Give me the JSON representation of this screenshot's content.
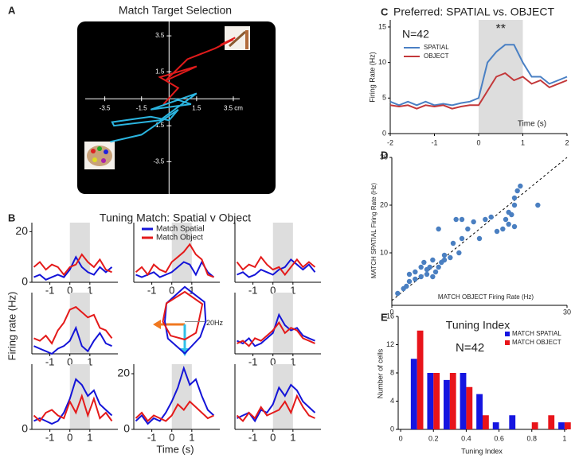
{
  "chart_data": [
    {
      "label": "A",
      "type": "trajectory",
      "title": "Match Target Selection",
      "xlim": [
        -5,
        5.8
      ],
      "ylim": [
        -5.3,
        4.3
      ],
      "xticks": [
        -3.5,
        -1.5,
        1.5,
        {
          "value": 3.5,
          "label": "3.5 cm"
        }
      ],
      "yticks": [
        3.5,
        1.5,
        -1.5,
        -3.5
      ],
      "series": [
        {
          "color": "#e01b1b",
          "x": [
            -0.3,
            0.5,
            -0.5,
            1.5,
            -0.2,
            1.0,
            2.5,
            3.5,
            2.8,
            3.6
          ],
          "values": [
            -0.3,
            0.6,
            1.2,
            1.8,
            1.0,
            2.2,
            2.8,
            3.3,
            3.0,
            3.4
          ]
        },
        {
          "color": "#2bb5e0",
          "x": [
            0.3,
            1.2,
            -1.0,
            1.5,
            -0.5,
            -3.0,
            -3.1,
            -1.0,
            0.0,
            0.5,
            -1.5,
            -3.2
          ],
          "values": [
            0.0,
            -0.3,
            -0.6,
            0.3,
            -1.2,
            -1.5,
            -1.3,
            -1.0,
            -1.2,
            -0.6,
            -2.0,
            -2.4
          ]
        }
      ]
    },
    {
      "label": "B",
      "type": "multiples",
      "title": "Tuning Match: Spatial v Object",
      "ylabel": "Firing rate (Hz)",
      "xlabel": "Time (s)",
      "legend": [
        {
          "name": "Match Spatial",
          "color": "#1414d8"
        },
        {
          "name": "Match Object",
          "color": "#e41a1a"
        }
      ],
      "x": [
        -1.8,
        -1.5,
        -1.2,
        -0.9,
        -0.6,
        -0.3,
        0,
        0.3,
        0.6,
        0.9,
        1.2,
        1.5,
        1.8,
        2.1
      ],
      "xlim": [
        -1.9,
        2.4
      ],
      "ylim": [
        0,
        22
      ],
      "shade": [
        0,
        1
      ],
      "subplots": [
        {
          "type": "line",
          "yticks": [
            0,
            20
          ],
          "xticks": [
            -1,
            0,
            1
          ],
          "series": [
            {
              "values": [
                2,
                3,
                1,
                2,
                3,
                2,
                5,
                10,
                6,
                4,
                3,
                6,
                4,
                6
              ]
            },
            {
              "values": [
                6,
                8,
                5,
                7,
                6,
                3,
                6,
                7,
                11,
                8,
                6,
                9,
                5,
                4
              ]
            }
          ]
        },
        {
          "type": "line",
          "xticks": [
            -1,
            0,
            1
          ],
          "series": [
            {
              "values": [
                3,
                2,
                3,
                4,
                2,
                3,
                4,
                6,
                8,
                7,
                3,
                8,
                4,
                2
              ]
            },
            {
              "values": [
                4,
                6,
                3,
                7,
                5,
                4,
                8,
                10,
                12,
                15,
                11,
                9,
                3,
                2
              ]
            }
          ]
        },
        {
          "type": "line",
          "xticks": [
            -1,
            0,
            1
          ],
          "series": [
            {
              "values": [
                3,
                4,
                2,
                3,
                5,
                4,
                3,
                5,
                6,
                9,
                7,
                5,
                7,
                4
              ]
            },
            {
              "values": [
                8,
                5,
                7,
                6,
                10,
                7,
                5,
                6,
                3,
                6,
                9,
                6,
                8,
                6
              ]
            }
          ]
        },
        {
          "type": "line",
          "xticks": [
            -1,
            0,
            1
          ],
          "series": [
            {
              "values": [
                3,
                2,
                1,
                0,
                2,
                3,
                5,
                10,
                3,
                1,
                5,
                8,
                4,
                3
              ]
            },
            {
              "values": [
                6,
                5,
                7,
                4,
                9,
                12,
                17,
                18,
                16,
                14,
                15,
                10,
                9,
                6
              ]
            }
          ]
        },
        {
          "type": "polar",
          "angles": [
            0,
            45,
            90,
            135,
            180,
            225,
            270,
            315
          ],
          "rtick": {
            "value": 20,
            "label": "20Hz"
          },
          "series": [
            {
              "values": [
                21,
                28,
                35,
                26,
                20,
                24,
                32,
                22
              ]
            },
            {
              "values": [
                14,
                25,
                30,
                26,
                22,
                20,
                18,
                16
              ]
            }
          ]
        },
        {
          "type": "line",
          "xticks": [
            -1,
            0,
            1
          ],
          "series": [
            {
              "values": [
                5,
                4,
                6,
                3,
                4,
                6,
                8,
                15,
                11,
                9,
                10,
                7,
                6,
                5
              ]
            },
            {
              "values": [
                4,
                5,
                3,
                6,
                5,
                7,
                9,
                12,
                8,
                10,
                9,
                6,
                5,
                4
              ]
            }
          ]
        },
        {
          "type": "line",
          "yticks": [
            0
          ],
          "xticks": [
            -1,
            0,
            1
          ],
          "series": [
            {
              "values": [
                3,
                4,
                3,
                2,
                3,
                6,
                11,
                18,
                16,
                12,
                14,
                9,
                7,
                5
              ]
            },
            {
              "values": [
                5,
                3,
                6,
                7,
                5,
                4,
                10,
                6,
                12,
                5,
                11,
                4,
                6,
                3
              ]
            }
          ]
        },
        {
          "type": "line",
          "yticks": [
            0,
            20
          ],
          "xticks": [
            -1,
            0,
            1
          ],
          "series": [
            {
              "values": [
                3,
                5,
                2,
                4,
                3,
                6,
                10,
                15,
                22,
                16,
                18,
                12,
                7,
                5
              ]
            },
            {
              "values": [
                4,
                6,
                3,
                5,
                4,
                3,
                5,
                9,
                7,
                10,
                8,
                6,
                4,
                5
              ]
            }
          ]
        },
        {
          "type": "line",
          "xticks": [
            -1,
            0,
            1
          ],
          "series": [
            {
              "values": [
                4,
                5,
                6,
                3,
                7,
                6,
                9,
                15,
                12,
                16,
                14,
                10,
                8,
                6
              ]
            },
            {
              "values": [
                5,
                3,
                6,
                4,
                8,
                5,
                6,
                7,
                10,
                6,
                12,
                8,
                5,
                4
              ]
            }
          ]
        }
      ]
    },
    {
      "label": "C",
      "type": "line",
      "title": "Preferred: SPATIAL vs. OBJECT",
      "ylabel": "Firing Rate (Hz)",
      "xlabel": "Time (s)",
      "annotations": [
        "N=42",
        "**"
      ],
      "x": [
        -2,
        -1.8,
        -1.6,
        -1.4,
        -1.2,
        -1,
        -0.8,
        -0.6,
        -0.4,
        -0.2,
        0,
        0.2,
        0.4,
        0.6,
        0.8,
        1,
        1.2,
        1.4,
        1.6,
        1.8,
        2
      ],
      "xlim": [
        -2,
        2
      ],
      "ylim": [
        0,
        16
      ],
      "xticks": [
        -2,
        -1,
        0,
        1,
        2
      ],
      "yticks": [
        0,
        5,
        10,
        15
      ],
      "shade": [
        0,
        1
      ],
      "series": [
        {
          "name": "SPATIAL",
          "color": "#4a80c4",
          "values": [
            4.5,
            4,
            4.5,
            4,
            4.5,
            4,
            4.2,
            4,
            4.3,
            4.5,
            5,
            10,
            11.5,
            12.5,
            12.5,
            10,
            8,
            8,
            7,
            7.5,
            8
          ]
        },
        {
          "name": "OBJECT",
          "color": "#c3383a",
          "values": [
            4,
            3.8,
            4,
            3.5,
            4,
            3.8,
            4,
            3.5,
            3.8,
            4,
            4,
            6,
            8,
            8.5,
            7.5,
            8,
            7,
            7.5,
            6.5,
            7,
            7.5
          ]
        }
      ]
    },
    {
      "label": "D",
      "type": "scatter",
      "xlabel": "MATCH OBJECT Firing Rate (Hz)",
      "ylabel": "MATCH SPATIAL Firing Rate (Hz)",
      "color": "#4a7fc1",
      "xlim": [
        0,
        30
      ],
      "ylim": [
        -1,
        30
      ],
      "xticks": [
        0,
        30
      ],
      "yticks": [
        10,
        20,
        30
      ],
      "x": [
        1,
        2,
        2.5,
        3,
        3,
        4,
        4,
        5,
        5,
        5.5,
        6,
        6,
        6.5,
        7,
        7,
        7.5,
        8,
        8.5,
        9,
        9,
        10,
        10.5,
        11,
        11.5,
        12,
        13,
        14,
        15,
        16,
        17,
        18,
        19,
        19.5,
        20,
        20,
        20.5,
        21,
        21,
        21.5,
        22,
        21,
        25,
        8,
        12
      ],
      "values": [
        1.5,
        2.5,
        3,
        4,
        5.5,
        4.5,
        6,
        5,
        7,
        8,
        5.5,
        6.5,
        7,
        5,
        8.5,
        6,
        7,
        8,
        8.5,
        9.5,
        9,
        12,
        17,
        10,
        13,
        15,
        16.5,
        13,
        17,
        17.5,
        14.5,
        15,
        17,
        16,
        18.5,
        18,
        20,
        21.5,
        23,
        24,
        15.5,
        20,
        15,
        17
      ]
    },
    {
      "label": "E",
      "type": "grouped_bar",
      "title": "Tuning Index",
      "annotations": [
        "N=42"
      ],
      "xlabel": "Tuning Index",
      "ylabel": "Number of cells",
      "x": [
        0.1,
        0.2,
        0.3,
        0.4,
        0.5,
        0.6,
        0.7,
        0.8,
        0.9,
        1.0
      ],
      "xlim": [
        -0.015,
        1.015
      ],
      "ylim": [
        0,
        16
      ],
      "xticks": [
        0,
        0.2,
        0.4,
        0.6,
        0.8,
        1
      ],
      "yticks": [
        0,
        4,
        8,
        12,
        16
      ],
      "series": [
        {
          "name": "MATCH SPATIAL",
          "color": "#1515e0",
          "values": [
            10,
            8,
            7,
            8,
            5,
            1,
            2,
            0,
            0,
            1
          ]
        },
        {
          "name": "MATCH OBJECT",
          "color": "#e8141a",
          "values": [
            14,
            8,
            8,
            6,
            2,
            0,
            0,
            1,
            2,
            1
          ]
        }
      ]
    }
  ]
}
